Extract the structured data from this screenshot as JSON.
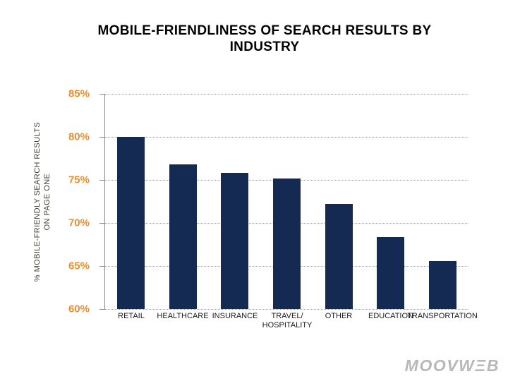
{
  "chart_data": {
    "type": "bar",
    "title": "MOBILE-FRIENDLINESS OF SEARCH RESULTS BY\nINDUSTRY",
    "ylabel": "% MOBILE-FRIENDLY SEARCH RESULTS\nON PAGE ONE",
    "xlabel": "",
    "categories": [
      "RETAIL",
      "HEALTHCARE",
      "INSURANCE",
      "TRAVEL/\nHOSPITALITY",
      "OTHER",
      "EDUCATION",
      "TRANSPORTATION"
    ],
    "values": [
      80,
      76.8,
      75.8,
      75.2,
      72.2,
      68.4,
      65.6
    ],
    "unit": "%",
    "ylim": [
      60,
      85
    ],
    "ytick_labels": [
      "85%",
      "80%",
      "75%",
      "70%",
      "65%",
      "60%"
    ],
    "grid": true,
    "legend": false
  },
  "colors": {
    "bar": "#142A52",
    "ytick_text": "#EE8C30",
    "gridline": "#9A9A9A",
    "axis_line": "#8C8C8C",
    "title_text": "#000000",
    "xtick_text": "#1A1A1A",
    "ylabel_text": "#3F3F36",
    "logo_text": "#B5B9BB"
  },
  "logo": {
    "text": "MOOVWEB"
  }
}
